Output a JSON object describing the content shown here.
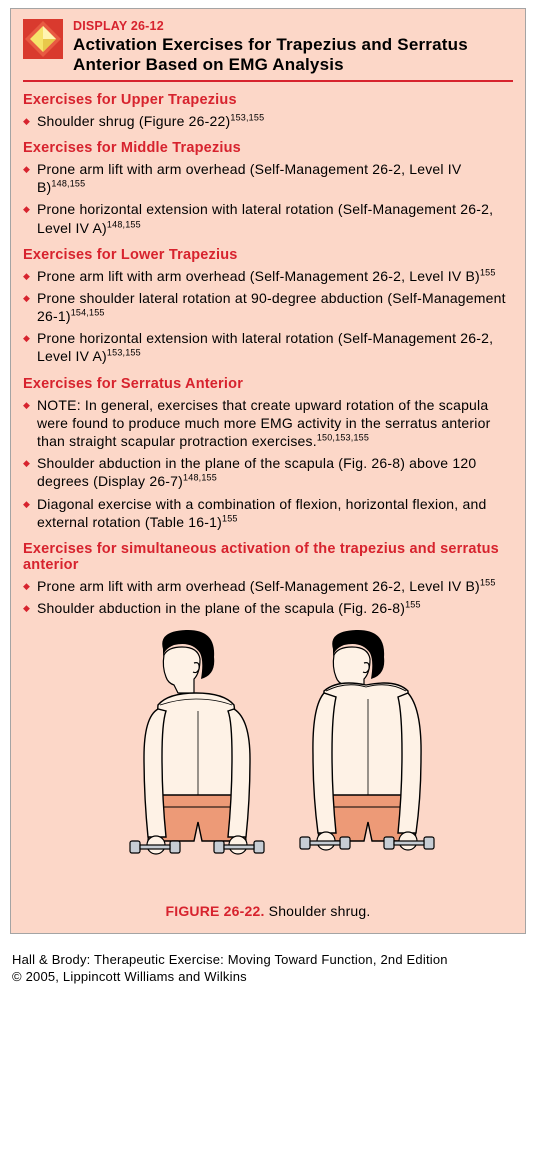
{
  "display_label": "DISPLAY 26-12",
  "display_title": "Activation Exercises for Trapezius and Serratus Anterior Based on EMG Analysis",
  "colors": {
    "accent_red": "#d7232e",
    "box_bg": "#fcd7c8",
    "text": "#000000",
    "icon_outer": "#d93a2e",
    "icon_inner": "#f6e36a",
    "skin": "#fef2e6",
    "shorts": "#ed9a77",
    "hair": "#000000",
    "outline": "#000000",
    "dumbbell": "#9ca3af"
  },
  "sections": [
    {
      "heading": "Exercises for Upper Trapezius",
      "items": [
        {
          "text": "Shoulder shrug (Figure 26-22)",
          "refs": "153,155"
        }
      ]
    },
    {
      "heading": "Exercises for Middle Trapezius",
      "items": [
        {
          "text": "Prone arm lift with arm overhead (Self-Management 26-2, Level IV B)",
          "refs": "148,155"
        },
        {
          "text": "Prone horizontal extension with lateral rotation (Self-Management 26-2, Level IV A)",
          "refs": "148,155"
        }
      ]
    },
    {
      "heading": "Exercises for Lower Trapezius",
      "items": [
        {
          "text": "Prone arm lift with arm overhead (Self-Management 26-2, Level IV B)",
          "refs": "155"
        },
        {
          "text": "Prone shoulder lateral rotation at 90-degree abduction (Self-Management 26-1)",
          "refs": "154,155"
        },
        {
          "text": "Prone horizontal extension with lateral rotation (Self-Management 26-2, Level IV A)",
          "refs": "153,155"
        }
      ]
    },
    {
      "heading": "Exercises for Serratus Anterior",
      "items": [
        {
          "text": "NOTE: In general, exercises that create upward rotation of the scapula were found to produce much more EMG activity in the serratus anterior than straight scapular protraction exercises.",
          "refs": "150,153,155"
        },
        {
          "text": "Shoulder abduction in the plane of the scapula (Fig. 26-8) above 120 degrees (Display 26-7)",
          "refs": "148,155"
        },
        {
          "text": "Diagonal exercise with a combination of flexion, horizontal flexion, and external rotation (Table 16-1)",
          "refs": "155"
        }
      ]
    },
    {
      "heading": "Exercises for simultaneous activation of the trapezius and serratus anterior",
      "items": [
        {
          "text": "Prone arm lift with arm overhead (Self-Management 26-2, Level IV B)",
          "refs": "155"
        },
        {
          "text": "Shoulder abduction in the plane of the scapula (Fig. 26-8)",
          "refs": "155"
        }
      ]
    }
  ],
  "figure": {
    "label": "FIGURE 26-22.",
    "caption": "Shoulder shrug."
  },
  "credit_line1": "Hall & Brody: Therapeutic Exercise: Moving Toward Function, 2nd Edition",
  "credit_line2": "© 2005, Lippincott Williams and Wilkins"
}
